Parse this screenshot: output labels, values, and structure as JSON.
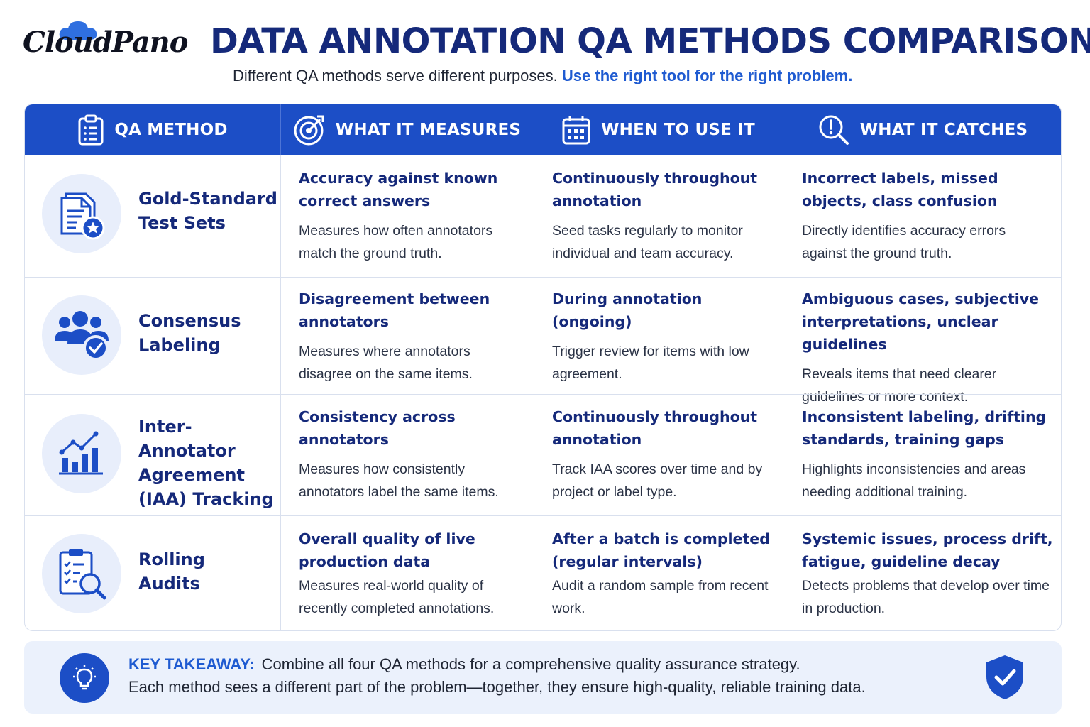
{
  "brand": {
    "logo_text": "CloudPano"
  },
  "header": {
    "title": "DATA ANNOTATION QA METHODS COMPARISON",
    "subtitle_plain": "Different QA methods serve different purposes.",
    "subtitle_highlight": "Use the right tool for the right problem."
  },
  "colors": {
    "primary": "#1c4ec6",
    "navy": "#15297a",
    "accent": "#1f5bd1",
    "icon_bg": "#e8eefb",
    "takeaway_bg": "#ebf1fc"
  },
  "table": {
    "columns": [
      {
        "label": "QA METHOD",
        "icon": "clipboard-list-icon"
      },
      {
        "label": "WHAT IT MEASURES",
        "icon": "target-icon"
      },
      {
        "label": "WHEN TO USE IT",
        "icon": "calendar-icon"
      },
      {
        "label": "WHAT IT CATCHES",
        "icon": "search-alert-icon"
      }
    ],
    "rows": [
      {
        "method": "Gold-Standard Test Sets",
        "icon": "document-star-icon",
        "measures_title": "Accuracy against known correct answers",
        "measures_desc": "Measures how often annotators match the ground truth.",
        "when_title": "Continuously throughout annotation",
        "when_desc": "Seed tasks regularly to monitor individual and team accuracy.",
        "catches_title": "Incorrect labels, missed objects, class confusion",
        "catches_desc": "Directly identifies accuracy errors against the ground truth."
      },
      {
        "method": "Consensus Labeling",
        "icon": "team-check-icon",
        "measures_title": "Disagreement between annotators",
        "measures_desc": "Measures where annotators disagree on the same items.",
        "when_title": "During annotation (ongoing)",
        "when_desc": "Trigger review for items with low agreement.",
        "catches_title": "Ambiguous cases, subjective interpretations, unclear guidelines",
        "catches_desc": "Reveals items that need clearer guidelines or more context."
      },
      {
        "method": "Inter-Annotator Agreement (IAA) Tracking",
        "icon": "bar-chart-trend-icon",
        "measures_title": "Consistency across annotators",
        "measures_desc": "Measures how consistently annotators label the same items.",
        "when_title": "Continuously throughout annotation",
        "when_desc": "Track IAA scores over time and by project or label type.",
        "catches_title": "Inconsistent labeling, drifting standards, training gaps",
        "catches_desc": "Highlights inconsistencies and areas needing additional training."
      },
      {
        "method": "Rolling Audits",
        "icon": "clipboard-search-icon",
        "measures_title": "Overall quality of live production data",
        "measures_desc": "Measures real-world quality of recently completed annotations.",
        "when_title": "After a batch is completed (regular intervals)",
        "when_desc": "Audit a random sample from recent work.",
        "catches_title": "Systemic issues, process drift, fatigue, guideline decay",
        "catches_desc": "Detects problems that develop over time in production."
      }
    ]
  },
  "takeaway": {
    "label": "KEY TAKEAWAY:",
    "line1": "Combine all four QA methods for a comprehensive quality assurance strategy.",
    "line2": "Each method sees a different part of the problem—together, they ensure high-quality, reliable training data.",
    "icon_left": "lightbulb-icon",
    "icon_right": "shield-check-icon"
  }
}
